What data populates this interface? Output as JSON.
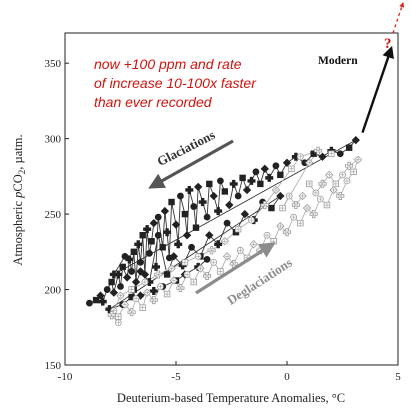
{
  "chart_data": {
    "type": "scatter",
    "xlabel": "Deuterium-based Temperature Anomalies, °C",
    "ylabel_prefix": "Atmospheric ",
    "ylabel_italic": "p",
    "ylabel_co": "CO",
    "ylabel_sub": "2",
    "ylabel_suffix": ", µatm.",
    "xlim": [
      -10,
      5
    ],
    "ylim": [
      150,
      370
    ],
    "x_ticks": [
      -10,
      -5,
      0,
      5
    ],
    "y_ticks": [
      150,
      200,
      250,
      300,
      350
    ],
    "x_tick_labels": [
      "-10",
      "-5",
      "0",
      "5"
    ],
    "y_tick_labels": [
      "150",
      "200",
      "250",
      "300",
      "350"
    ],
    "annotation_lines": [
      "now +100 ppm and rate",
      "of increase 10-100x faster",
      "than ever recorded"
    ],
    "glaciations_label": "Glaciations",
    "deglaciations_label": "Deglaciations",
    "modern_label": "Modern",
    "question_mark": "?",
    "modern_arrow": {
      "from": [
        3.4,
        304
      ],
      "to": [
        4.7,
        360
      ]
    },
    "colors": {
      "dark": "#222222",
      "light": "#9a9a9a",
      "annotation": "#d0140e",
      "glaciation_arrow": "#555555",
      "deglaciation_arrow": "#8c8c8c"
    },
    "series": [
      {
        "style": "dark",
        "points": [
          [
            -8.9,
            191
          ],
          [
            -8.6,
            193
          ],
          [
            -8.4,
            196
          ],
          [
            -8.3,
            192
          ],
          [
            -8.1,
            200
          ],
          [
            -7.9,
            205
          ],
          [
            -7.8,
            198
          ],
          [
            -7.6,
            210
          ],
          [
            -7.5,
            202
          ],
          [
            -7.4,
            215
          ],
          [
            -7.2,
            208
          ],
          [
            -7.1,
            220
          ],
          [
            -7.0,
            212
          ],
          [
            -6.9,
            225
          ],
          [
            -6.8,
            205
          ],
          [
            -6.7,
            230
          ],
          [
            -6.6,
            218
          ],
          [
            -6.5,
            236
          ],
          [
            -6.4,
            210
          ],
          [
            -6.3,
            240
          ],
          [
            -6.2,
            224
          ],
          [
            -6.1,
            232
          ],
          [
            -6.0,
            244
          ],
          [
            -5.9,
            215
          ],
          [
            -5.8,
            248
          ],
          [
            -5.6,
            228
          ],
          [
            -5.5,
            252
          ],
          [
            -5.4,
            238
          ],
          [
            -5.3,
            221
          ],
          [
            -5.2,
            258
          ],
          [
            -5.0,
            243
          ],
          [
            -4.9,
            230
          ],
          [
            -4.8,
            262
          ],
          [
            -4.6,
            250
          ],
          [
            -4.5,
            236
          ],
          [
            -4.4,
            266
          ],
          [
            -4.2,
            255
          ],
          [
            -4.1,
            241
          ],
          [
            -4.0,
            268
          ],
          [
            -3.8,
            258
          ],
          [
            -3.6,
            248
          ],
          [
            -3.5,
            270
          ],
          [
            -3.3,
            262
          ],
          [
            -3.1,
            252
          ],
          [
            -3.0,
            272
          ],
          [
            -2.8,
            265
          ],
          [
            -2.6,
            256
          ],
          [
            -2.4,
            270
          ],
          [
            -2.2,
            262
          ],
          [
            -2.0,
            274
          ],
          [
            -1.8,
            266
          ],
          [
            -1.6,
            272
          ],
          [
            -1.4,
            278
          ],
          [
            -1.2,
            270
          ],
          [
            -1.0,
            280
          ],
          [
            -0.8,
            274
          ],
          [
            -0.5,
            282
          ],
          [
            -0.3,
            276
          ],
          [
            0.0,
            284
          ],
          [
            0.4,
            288
          ],
          [
            0.8,
            284
          ],
          [
            1.2,
            290
          ],
          [
            1.6,
            288
          ],
          [
            2.0,
            292
          ],
          [
            2.4,
            290
          ],
          [
            2.8,
            294
          ],
          [
            3.1,
            299
          ],
          [
            -7.8,
            210
          ],
          [
            -7.3,
            222
          ],
          [
            -6.9,
            200
          ],
          [
            -6.6,
            212
          ],
          [
            -6.2,
            205
          ],
          [
            -5.8,
            236
          ],
          [
            -5.4,
            210
          ],
          [
            -5.1,
            222
          ],
          [
            -4.7,
            216
          ],
          [
            -4.3,
            228
          ],
          [
            -3.9,
            222
          ],
          [
            -3.5,
            236
          ],
          [
            -3.1,
            230
          ],
          [
            -2.7,
            244
          ],
          [
            -2.3,
            238
          ],
          [
            -1.9,
            250
          ],
          [
            -1.5,
            246
          ],
          [
            -1.1,
            258
          ],
          [
            -0.7,
            254
          ],
          [
            -0.3,
            262
          ],
          [
            -8.0,
            187
          ],
          [
            -7.4,
            190
          ],
          [
            -7.0,
            195
          ],
          [
            -6.6,
            196
          ],
          [
            -6.0,
            199
          ],
          [
            -5.6,
            202
          ],
          [
            -5.0,
            206
          ],
          [
            -4.6,
            210
          ],
          [
            -4.0,
            215
          ],
          [
            -3.6,
            220
          ]
        ]
      },
      {
        "style": "light",
        "points": [
          [
            -7.8,
            186
          ],
          [
            -7.6,
            182
          ],
          [
            -7.3,
            190
          ],
          [
            -7.0,
            185
          ],
          [
            -6.8,
            194
          ],
          [
            -6.5,
            188
          ],
          [
            -6.3,
            198
          ],
          [
            -6.0,
            193
          ],
          [
            -5.7,
            202
          ],
          [
            -5.4,
            197
          ],
          [
            -5.1,
            206
          ],
          [
            -4.8,
            201
          ],
          [
            -4.5,
            210
          ],
          [
            -4.2,
            205
          ],
          [
            -3.9,
            214
          ],
          [
            -3.6,
            209
          ],
          [
            -3.3,
            218
          ],
          [
            -3.0,
            212
          ],
          [
            -2.7,
            222
          ],
          [
            -2.4,
            217
          ],
          [
            -2.1,
            226
          ],
          [
            -1.8,
            221
          ],
          [
            -1.5,
            230
          ],
          [
            -1.2,
            226
          ],
          [
            -0.9,
            236
          ],
          [
            -0.6,
            232
          ],
          [
            -0.3,
            242
          ],
          [
            0.0,
            238
          ],
          [
            0.3,
            248
          ],
          [
            0.6,
            244
          ],
          [
            0.9,
            254
          ],
          [
            1.2,
            250
          ],
          [
            1.5,
            260
          ],
          [
            1.8,
            256
          ],
          [
            2.1,
            266
          ],
          [
            2.4,
            262
          ],
          [
            2.7,
            272
          ],
          [
            3.0,
            278
          ],
          [
            3.2,
            286
          ],
          [
            2.8,
            282
          ],
          [
            2.5,
            276
          ],
          [
            2.2,
            270
          ],
          [
            1.9,
            276
          ],
          [
            1.6,
            270
          ],
          [
            1.3,
            264
          ],
          [
            1.0,
            270
          ],
          [
            0.7,
            262
          ],
          [
            0.4,
            256
          ],
          [
            0.1,
            262
          ],
          [
            -0.2,
            254
          ],
          [
            1.0,
            284
          ],
          [
            1.4,
            292
          ],
          [
            0.6,
            288
          ],
          [
            0.2,
            280
          ],
          [
            -0.5,
            266
          ],
          [
            -1.0,
            256
          ],
          [
            -1.6,
            246
          ],
          [
            -2.2,
            240
          ],
          [
            -2.8,
            232
          ],
          [
            -3.4,
            226
          ],
          [
            -4.0,
            222
          ],
          [
            -4.6,
            218
          ],
          [
            -5.2,
            214
          ],
          [
            -5.8,
            210
          ],
          [
            -6.4,
            205
          ],
          [
            -7.0,
            200
          ],
          [
            -7.5,
            196
          ],
          [
            -7.9,
            183
          ],
          [
            -7.6,
            178
          ],
          [
            2.0,
            290
          ]
        ]
      }
    ]
  }
}
